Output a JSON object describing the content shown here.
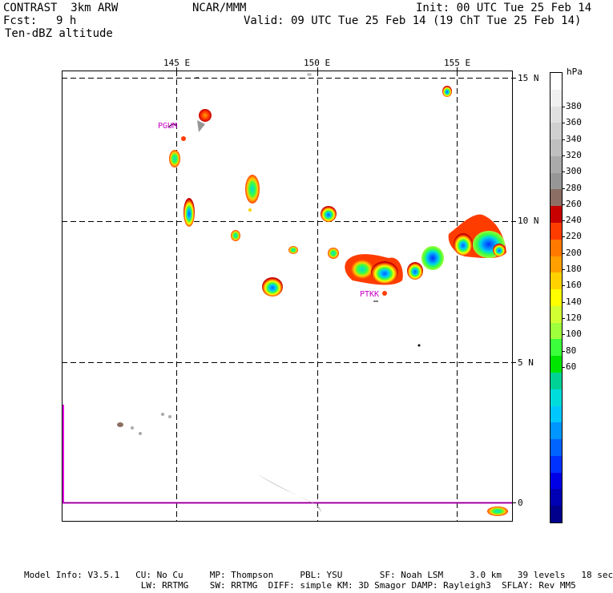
{
  "header": {
    "model": "CONTRAST  3km ARW",
    "org": "NCAR/MMM",
    "init": "Init: 00 UTC Tue 25 Feb 14",
    "fcst_label": "Fcst:",
    "fcst_value": "9 h",
    "valid": "Valid: 09 UTC Tue 25 Feb 14 (19 ChT Tue 25 Feb 14)",
    "field": "Ten-dBZ altitude"
  },
  "map": {
    "lon_labels": [
      "145 E",
      "150 E",
      "155 E"
    ],
    "lat_labels": [
      "15 N",
      "10 N",
      "5 N",
      "0"
    ],
    "stations": [
      "PGUM",
      "PTKK"
    ]
  },
  "colorbar": {
    "unit": "hPa",
    "ticks": [
      "380",
      "360",
      "340",
      "320",
      "300",
      "280",
      "260",
      "240",
      "220",
      "200",
      "180",
      "160",
      "140",
      "120",
      "100",
      "80",
      "60"
    ],
    "colors": [
      "#ffffff",
      "#f0f0f0",
      "#e0e0e0",
      "#d0d0d0",
      "#bfbfbf",
      "#aaaaaa",
      "#969696",
      "#8c6e64",
      "#c80000",
      "#ff3c00",
      "#ff7800",
      "#ffa000",
      "#ffd200",
      "#ffff00",
      "#d2ff32",
      "#a0ff3c",
      "#3cff3c",
      "#00e600",
      "#00d296",
      "#00dcdc",
      "#00c8ff",
      "#0096ff",
      "#0064ff",
      "#0032ff",
      "#0000e6",
      "#0000b4",
      "#00008c"
    ]
  },
  "footer": {
    "line1": "Model Info: V3.5.1   CU: No Cu     MP: Thompson     PBL: YSU       SF: Noah LSM     3.0 km   39 levels   18 sec",
    "line2": "                      LW: RRTMG    SW: RRTMG  DIFF: simple KM: 3D Smagor DAMP: Rayleigh3  SFLAY: Rev MM5"
  }
}
